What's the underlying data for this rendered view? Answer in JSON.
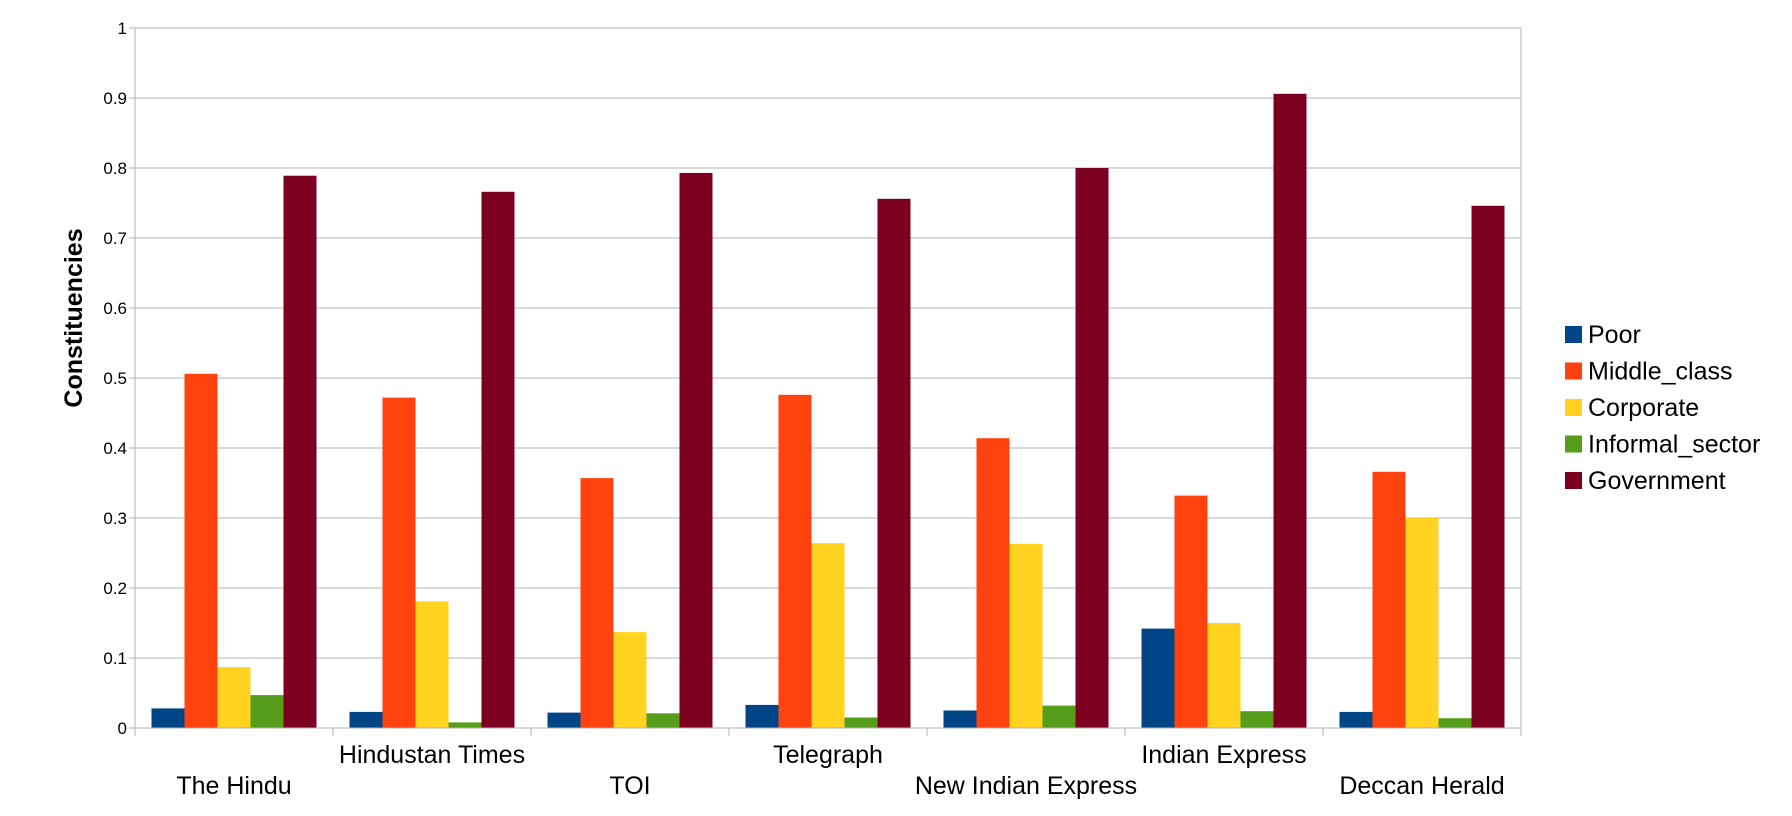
{
  "chart_data": {
    "type": "bar",
    "ylabel": "Constituencies",
    "ylim": [
      0,
      1
    ],
    "yticks": [
      "0",
      "0.1",
      "0.2",
      "0.3",
      "0.4",
      "0.5",
      "0.6",
      "0.7",
      "0.8",
      "0.9",
      "1"
    ],
    "grid": true,
    "legend_position": "right",
    "categories": [
      "The Hindu",
      "Hindustan Times",
      "TOI",
      "Telegraph",
      "New Indian Express",
      "Indian Express",
      "Deccan Herald"
    ],
    "series": [
      {
        "name": "Poor",
        "color": "#004586",
        "values": [
          0.028,
          0.023,
          0.022,
          0.033,
          0.025,
          0.142,
          0.023
        ]
      },
      {
        "name": "Middle_class",
        "color": "#ff420e",
        "values": [
          0.506,
          0.472,
          0.357,
          0.476,
          0.414,
          0.332,
          0.366
        ]
      },
      {
        "name": "Corporate",
        "color": "#ffd320",
        "values": [
          0.087,
          0.181,
          0.137,
          0.264,
          0.263,
          0.15,
          0.3
        ]
      },
      {
        "name": "Informal_sector",
        "color": "#579d1c",
        "values": [
          0.047,
          0.008,
          0.021,
          0.015,
          0.032,
          0.024,
          0.014
        ]
      },
      {
        "name": "Government",
        "color": "#7e0021",
        "values": [
          0.789,
          0.766,
          0.793,
          0.756,
          0.8,
          0.906,
          0.746
        ]
      }
    ]
  }
}
